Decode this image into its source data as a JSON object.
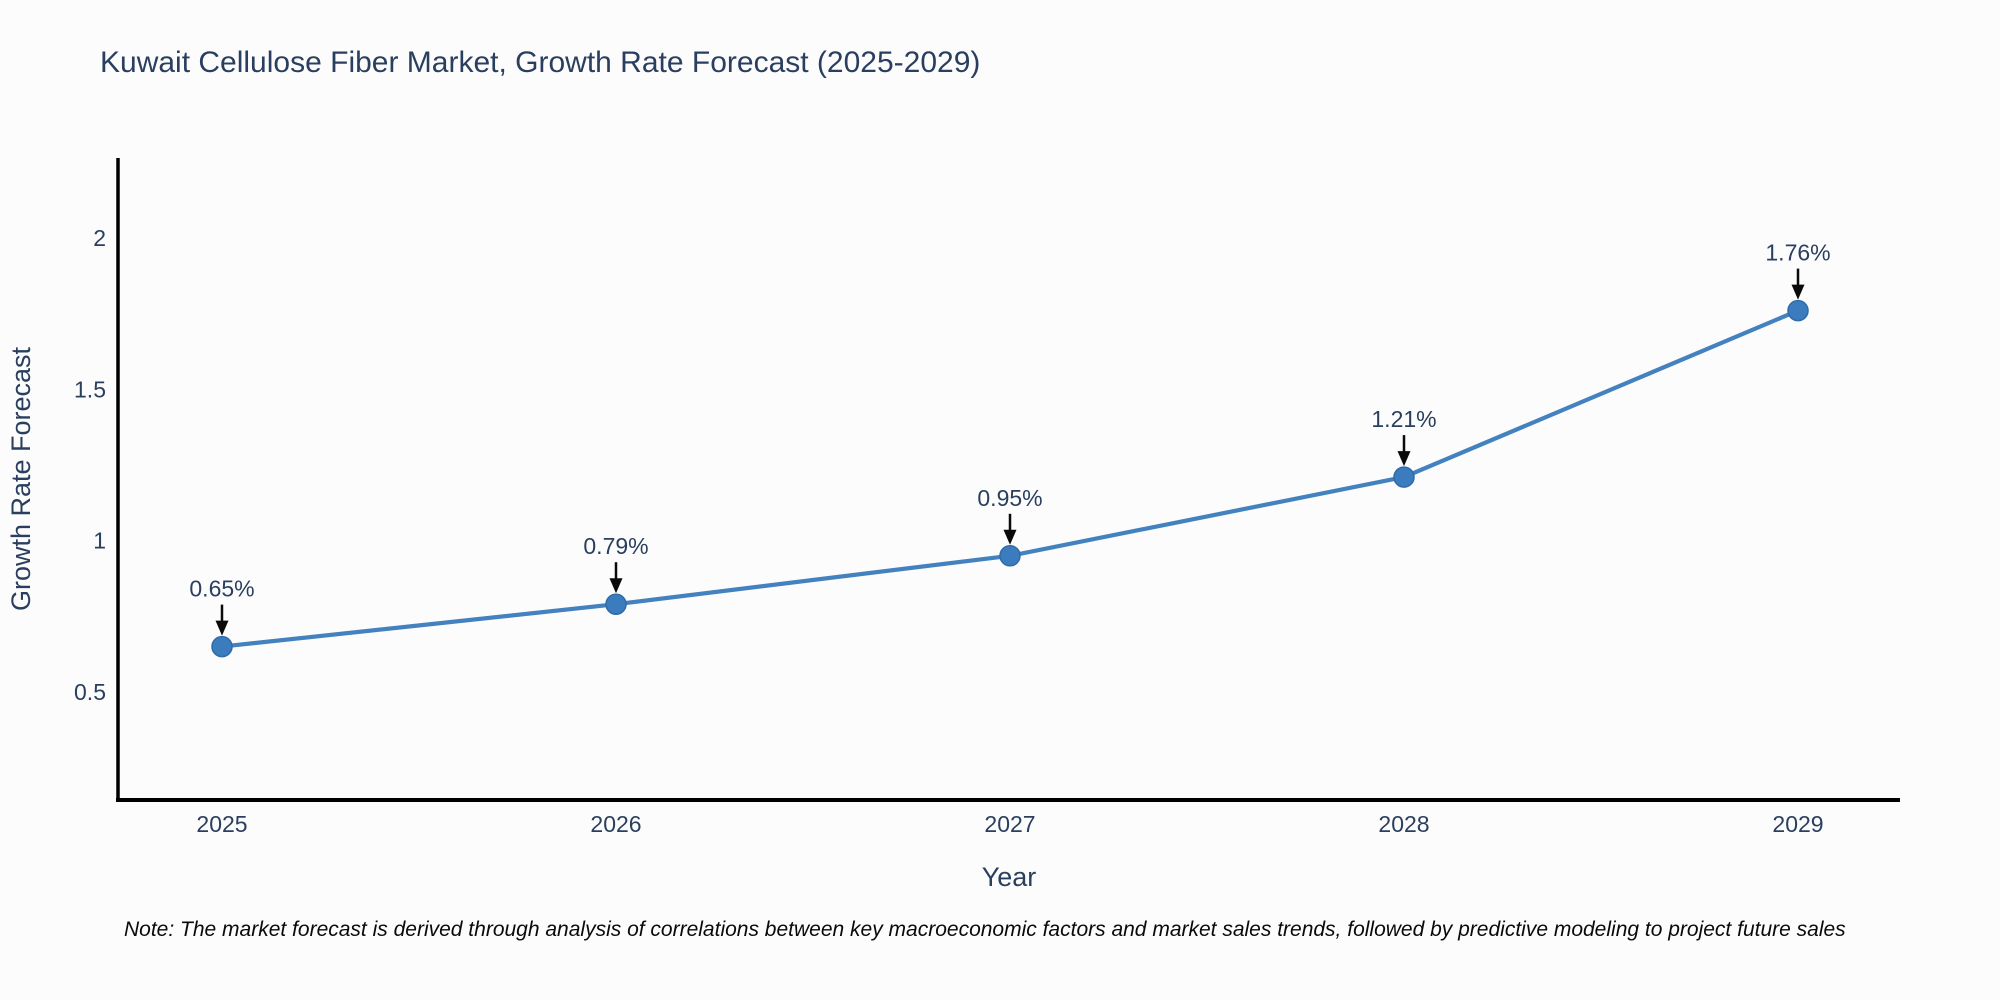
{
  "title": "Kuwait Cellulose Fiber Market, Growth Rate Forecast (2025-2029)",
  "note": "Note: The market forecast is derived through analysis of correlations between key macroeconomic factors and market sales trends, followed by predictive modeling to project future sales",
  "chart_data": {
    "type": "line",
    "title": "Kuwait Cellulose Fiber Market, Growth Rate Forecast (2025-2029)",
    "x": [
      2025,
      2026,
      2027,
      2028,
      2029
    ],
    "categories": [
      "2025",
      "2026",
      "2027",
      "2028",
      "2029"
    ],
    "values": [
      0.65,
      0.79,
      0.95,
      1.21,
      1.76
    ],
    "point_labels": [
      "0.65%",
      "0.79%",
      "0.95%",
      "1.21%",
      "1.76%"
    ],
    "xlabel": "Year",
    "ylabel": "Growth Rate Forecast",
    "yticks": [
      0.5,
      1,
      1.5,
      2
    ],
    "ytick_labels": [
      "0.5",
      "1",
      "1.5",
      "2"
    ],
    "ylim": [
      0.14,
      2.26
    ],
    "grid": false,
    "legend": "none",
    "annotations_arrow": true,
    "colors": {
      "line": "#4381bf",
      "marker": "#3b7cbe",
      "marker_edge": "#2f6ba8",
      "axis": "#000000",
      "text": "#2a3f5f",
      "annotation_text": "#2a3f5f",
      "arrow": "#0a0a0a",
      "note": "#0a0a0a",
      "background": "#fcfcfc"
    }
  }
}
